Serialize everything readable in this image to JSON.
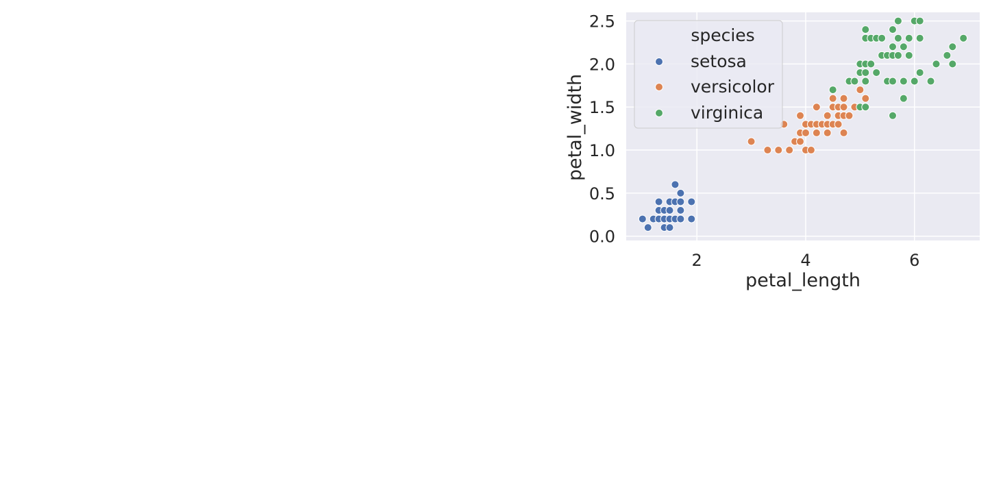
{
  "colors": {
    "background": "#eaeaf2",
    "grid": "#ffffff",
    "text": "#262626",
    "setosa": "#4c72b0",
    "versicolor": "#dd8452",
    "virginica": "#55a868"
  },
  "chart_data": {
    "type": "scatter",
    "title": "",
    "xlabel": "petal_length",
    "ylabel": "petal_width",
    "xlim": [
      0.7,
      7.2
    ],
    "ylim": [
      -0.05,
      2.6
    ],
    "xticks": [
      2,
      4,
      6
    ],
    "yticks": [
      0.0,
      0.5,
      1.0,
      1.5,
      2.0,
      2.5
    ],
    "ytick_labels": [
      "0.0",
      "0.5",
      "1.0",
      "1.5",
      "2.0",
      "2.5"
    ],
    "grid": true,
    "legend": {
      "title": "species",
      "placement": "upper-left"
    },
    "series": [
      {
        "name": "setosa",
        "color": "#4c72b0",
        "points": [
          [
            1.0,
            0.2
          ],
          [
            1.1,
            0.1
          ],
          [
            1.2,
            0.2
          ],
          [
            1.3,
            0.2
          ],
          [
            1.3,
            0.3
          ],
          [
            1.3,
            0.4
          ],
          [
            1.4,
            0.2
          ],
          [
            1.4,
            0.3
          ],
          [
            1.4,
            0.1
          ],
          [
            1.5,
            0.2
          ],
          [
            1.5,
            0.1
          ],
          [
            1.5,
            0.4
          ],
          [
            1.5,
            0.3
          ],
          [
            1.6,
            0.2
          ],
          [
            1.6,
            0.4
          ],
          [
            1.6,
            0.6
          ],
          [
            1.7,
            0.2
          ],
          [
            1.7,
            0.3
          ],
          [
            1.7,
            0.4
          ],
          [
            1.7,
            0.5
          ],
          [
            1.9,
            0.2
          ],
          [
            1.9,
            0.4
          ]
        ]
      },
      {
        "name": "versicolor",
        "color": "#dd8452",
        "points": [
          [
            3.0,
            1.1
          ],
          [
            3.3,
            1.0
          ],
          [
            3.5,
            1.0
          ],
          [
            3.6,
            1.3
          ],
          [
            3.7,
            1.0
          ],
          [
            3.8,
            1.1
          ],
          [
            3.9,
            1.1
          ],
          [
            3.9,
            1.2
          ],
          [
            3.9,
            1.4
          ],
          [
            4.0,
            1.0
          ],
          [
            4.0,
            1.2
          ],
          [
            4.0,
            1.3
          ],
          [
            4.1,
            1.0
          ],
          [
            4.1,
            1.3
          ],
          [
            4.2,
            1.2
          ],
          [
            4.2,
            1.3
          ],
          [
            4.2,
            1.5
          ],
          [
            4.3,
            1.3
          ],
          [
            4.4,
            1.2
          ],
          [
            4.4,
            1.3
          ],
          [
            4.4,
            1.4
          ],
          [
            4.5,
            1.3
          ],
          [
            4.5,
            1.5
          ],
          [
            4.5,
            1.6
          ],
          [
            4.6,
            1.3
          ],
          [
            4.6,
            1.4
          ],
          [
            4.6,
            1.5
          ],
          [
            4.7,
            1.2
          ],
          [
            4.7,
            1.4
          ],
          [
            4.7,
            1.5
          ],
          [
            4.7,
            1.6
          ],
          [
            4.8,
            1.4
          ],
          [
            4.9,
            1.5
          ],
          [
            5.0,
            1.7
          ],
          [
            5.1,
            1.6
          ]
        ]
      },
      {
        "name": "virginica",
        "color": "#55a868",
        "points": [
          [
            4.5,
            1.7
          ],
          [
            4.8,
            1.8
          ],
          [
            4.9,
            1.8
          ],
          [
            5.0,
            1.5
          ],
          [
            5.0,
            2.0
          ],
          [
            5.0,
            1.9
          ],
          [
            5.1,
            1.5
          ],
          [
            5.1,
            1.8
          ],
          [
            5.1,
            1.9
          ],
          [
            5.1,
            2.0
          ],
          [
            5.1,
            2.3
          ],
          [
            5.1,
            2.4
          ],
          [
            5.2,
            2.0
          ],
          [
            5.2,
            2.3
          ],
          [
            5.3,
            1.9
          ],
          [
            5.3,
            2.3
          ],
          [
            5.4,
            2.1
          ],
          [
            5.4,
            2.3
          ],
          [
            5.5,
            1.8
          ],
          [
            5.5,
            2.1
          ],
          [
            5.6,
            1.4
          ],
          [
            5.6,
            1.8
          ],
          [
            5.6,
            2.1
          ],
          [
            5.6,
            2.2
          ],
          [
            5.6,
            2.4
          ],
          [
            5.7,
            2.1
          ],
          [
            5.7,
            2.3
          ],
          [
            5.7,
            2.5
          ],
          [
            5.8,
            1.6
          ],
          [
            5.8,
            1.8
          ],
          [
            5.8,
            2.2
          ],
          [
            5.9,
            2.1
          ],
          [
            5.9,
            2.3
          ],
          [
            6.0,
            1.8
          ],
          [
            6.0,
            2.5
          ],
          [
            6.1,
            1.9
          ],
          [
            6.1,
            2.3
          ],
          [
            6.1,
            2.5
          ],
          [
            6.3,
            1.8
          ],
          [
            6.4,
            2.0
          ],
          [
            6.6,
            2.1
          ],
          [
            6.7,
            2.0
          ],
          [
            6.7,
            2.2
          ],
          [
            6.9,
            2.3
          ]
        ]
      }
    ]
  }
}
